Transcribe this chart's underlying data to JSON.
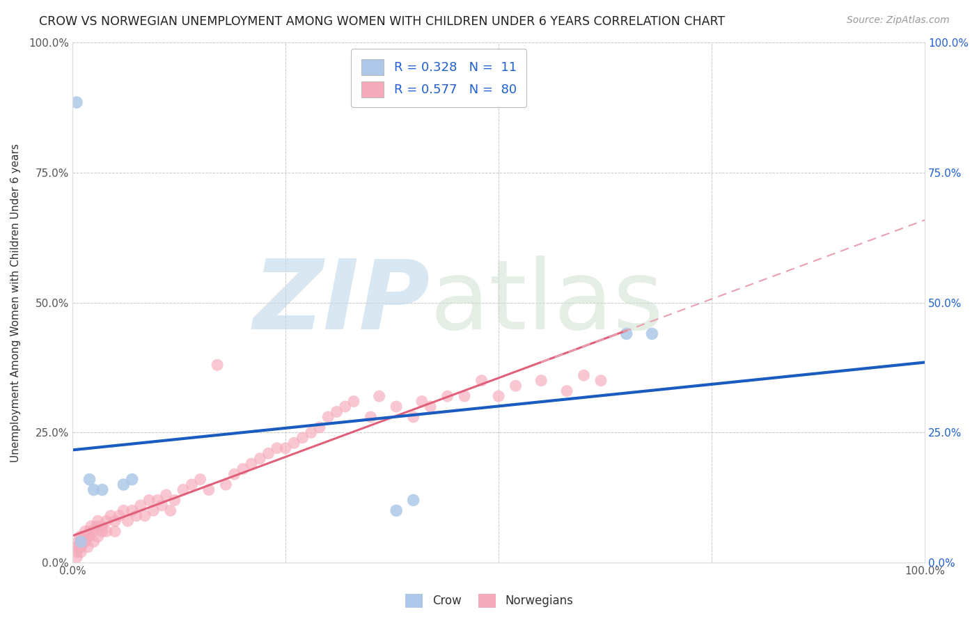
{
  "title": "CROW VS NORWEGIAN UNEMPLOYMENT AMONG WOMEN WITH CHILDREN UNDER 6 YEARS CORRELATION CHART",
  "source": "Source: ZipAtlas.com",
  "ylabel": "Unemployment Among Women with Children Under 6 years",
  "crow_R": 0.328,
  "crow_N": 11,
  "norwegian_R": 0.577,
  "norwegian_N": 80,
  "crow_color": "#adc8e8",
  "norwegian_color": "#f5aabb",
  "crow_line_color": "#1a5bbf",
  "norwegian_line_color": "#e0607a",
  "norwegian_dash_color": "#e8a0b0",
  "background_color": "#ffffff",
  "grid_color": "#c8c8c8",
  "title_color": "#222222",
  "source_color": "#999999",
  "legend_text_color": "#2060d0",
  "right_axis_color": "#2060d0",
  "xlim": [
    0,
    1
  ],
  "ylim": [
    0,
    1
  ],
  "yticks": [
    0,
    0.25,
    0.5,
    0.75,
    1.0
  ],
  "yticklabels_left": [
    "0.0%",
    "25.0%",
    "50.0%",
    "75.0%",
    "100.0%"
  ],
  "yticklabels_right": [
    "0.0%",
    "25.0%",
    "50.0%",
    "75.0%",
    "100.0%"
  ],
  "xticks": [
    0,
    0.25,
    0.5,
    0.75,
    1.0
  ],
  "xticklabels": [
    "0.0%",
    "",
    "",
    "",
    "100.0%"
  ],
  "crow_x": [
    0.005,
    0.01,
    0.02,
    0.025,
    0.035,
    0.06,
    0.07,
    0.38,
    0.4,
    0.65,
    0.68
  ],
  "crow_y": [
    0.885,
    0.04,
    0.16,
    0.14,
    0.14,
    0.15,
    0.16,
    0.1,
    0.12,
    0.44,
    0.44
  ],
  "norwegian_x": [
    0.005,
    0.005,
    0.005,
    0.007,
    0.008,
    0.009,
    0.01,
    0.01,
    0.01,
    0.012,
    0.013,
    0.015,
    0.015,
    0.018,
    0.018,
    0.02,
    0.02,
    0.022,
    0.025,
    0.025,
    0.028,
    0.03,
    0.03,
    0.035,
    0.035,
    0.04,
    0.04,
    0.045,
    0.05,
    0.05,
    0.055,
    0.06,
    0.065,
    0.07,
    0.075,
    0.08,
    0.085,
    0.09,
    0.095,
    0.1,
    0.105,
    0.11,
    0.115,
    0.12,
    0.13,
    0.14,
    0.15,
    0.16,
    0.17,
    0.18,
    0.19,
    0.2,
    0.21,
    0.22,
    0.23,
    0.24,
    0.25,
    0.26,
    0.27,
    0.28,
    0.29,
    0.3,
    0.31,
    0.32,
    0.33,
    0.35,
    0.36,
    0.38,
    0.4,
    0.41,
    0.42,
    0.44,
    0.46,
    0.48,
    0.5,
    0.52,
    0.55,
    0.58,
    0.6,
    0.62
  ],
  "norwegian_y": [
    0.03,
    0.02,
    0.01,
    0.04,
    0.03,
    0.05,
    0.04,
    0.03,
    0.02,
    0.05,
    0.04,
    0.06,
    0.04,
    0.05,
    0.03,
    0.06,
    0.05,
    0.07,
    0.06,
    0.04,
    0.07,
    0.08,
    0.05,
    0.07,
    0.06,
    0.08,
    0.06,
    0.09,
    0.08,
    0.06,
    0.09,
    0.1,
    0.08,
    0.1,
    0.09,
    0.11,
    0.09,
    0.12,
    0.1,
    0.12,
    0.11,
    0.13,
    0.1,
    0.12,
    0.14,
    0.15,
    0.16,
    0.14,
    0.38,
    0.15,
    0.17,
    0.18,
    0.19,
    0.2,
    0.21,
    0.22,
    0.22,
    0.23,
    0.24,
    0.25,
    0.26,
    0.28,
    0.29,
    0.3,
    0.31,
    0.28,
    0.32,
    0.3,
    0.28,
    0.31,
    0.3,
    0.32,
    0.32,
    0.35,
    0.32,
    0.34,
    0.35,
    0.33,
    0.36,
    0.35
  ],
  "watermark_zip": "ZIP",
  "watermark_atlas": "atlas",
  "watermark_color_zip": "#c0d8ec",
  "watermark_color_atlas": "#d0e0d0"
}
